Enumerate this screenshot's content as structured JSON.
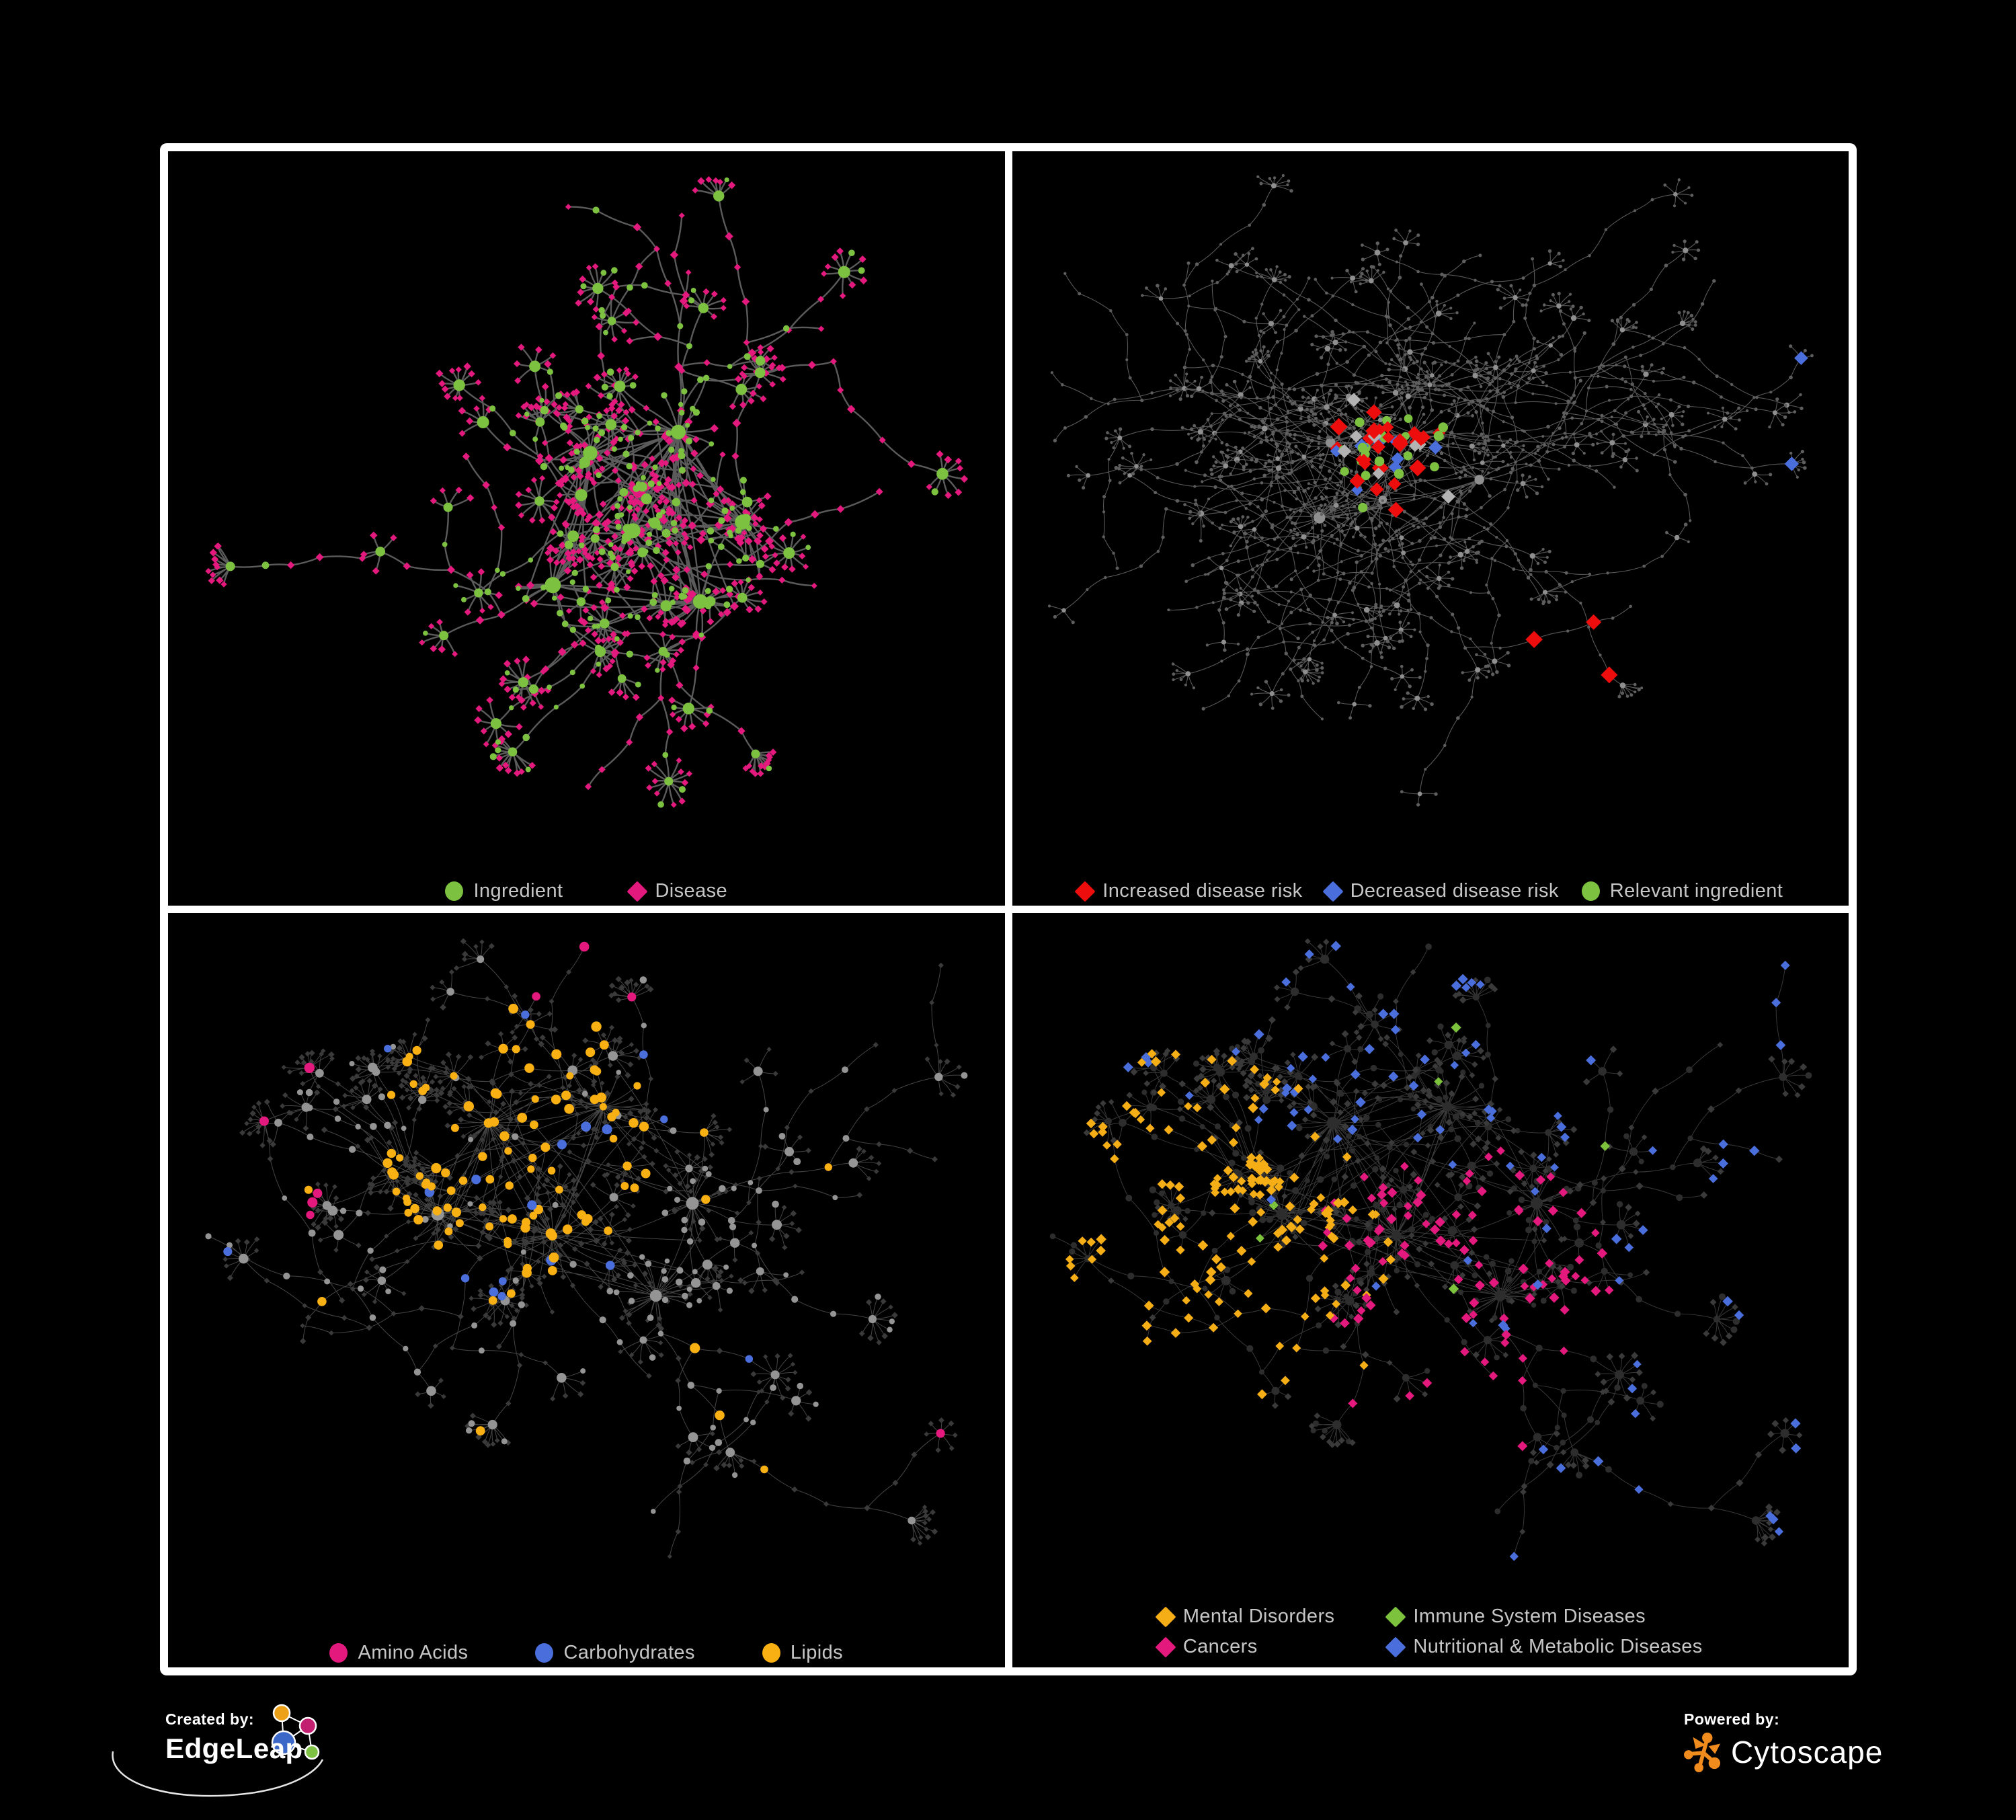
{
  "branding": {
    "created_by": "Created by:",
    "edgeleap": "EdgeLeap",
    "powered_by": "Powered by:",
    "cytoscape": "Cytoscape"
  },
  "colors": {
    "background": "#000000",
    "frame": "#ffffff",
    "panel_bg": "#000000",
    "legend_text": "#c6c6c6",
    "ingredient_green": "#7cc140",
    "disease_pink": "#e3197d",
    "increased_risk_red": "#ee0d0d",
    "decreased_risk_blue": "#4a6fdd",
    "neutral_silver": "#b3b3b3",
    "lipid_amber": "#f9b013",
    "mental_orange": "#f6ae17",
    "immune_green": "#7dc23c",
    "cancer_pink": "#e3197d",
    "nutritional_blue": "#4a6fdd",
    "gray_node": "#949494",
    "dark_node": "#3a3a3a",
    "edgeleap_orange": "#eda118",
    "edgeleap_magenta": "#c21f70",
    "edgeleap_blue": "#3a67c8",
    "edgeleap_green": "#7dc242",
    "cytoscape_orange": "#f08b1d"
  },
  "panels": [
    {
      "id": "ingredient-disease",
      "legend_layout": "row",
      "legend_rows": [
        [
          {
            "shape": "circle",
            "color": "#7cc140",
            "label": "Ingredient"
          },
          {
            "shape": "diamond",
            "color": "#e3197d",
            "label": "Disease"
          }
        ]
      ],
      "style": {
        "edge": "#6f6f6f",
        "edge_w": 2.4,
        "edge_op": 0.82,
        "ing": "#7cc140",
        "dis": "#e3197d"
      }
    },
    {
      "id": "disease-risk",
      "legend_layout": "row",
      "legend_rows": [
        [
          {
            "shape": "diamond",
            "color": "#ee0d0d",
            "label": "Increased disease risk"
          },
          {
            "shape": "diamond",
            "color": "#4a6fdd",
            "label": "Decreased disease risk"
          },
          {
            "shape": "circle",
            "color": "#7cc140",
            "label": "Relevant ingredient"
          }
        ]
      ],
      "style": {
        "edge": "#6e6e6e",
        "edge_w": 1.1,
        "edge_op": 0.8,
        "base": "#5e5e5e",
        "hub": "#8f8f8f",
        "red": "#ee0d0d",
        "blue": "#4a6fdd",
        "silver": "#b3b3b3",
        "green": "#7cc140",
        "counts": {
          "red": 24,
          "blue": 8,
          "silver": 8,
          "green": 20
        }
      }
    },
    {
      "id": "macronutrients",
      "legend_layout": "row",
      "legend_rows": [
        [
          {
            "shape": "circle",
            "color": "#e3197d",
            "label": "Amino Acids"
          },
          {
            "shape": "circle",
            "color": "#4a6fdd",
            "label": "Carbohydrates"
          },
          {
            "shape": "circle",
            "color": "#f9b013",
            "label": "Lipids"
          }
        ]
      ],
      "style": {
        "edge": "#8a8a8a",
        "edge_w": 1.0,
        "edge_op": 0.5,
        "ing": "#949494",
        "dis": "#3a3a3a",
        "amino": "#e3197d",
        "carb": "#4a6fdd",
        "lipid": "#f9b013"
      }
    },
    {
      "id": "disease-categories",
      "legend_layout": "grid",
      "legend_rows": [
        [
          {
            "shape": "diamond",
            "color": "#f6ae17",
            "label": "Mental Disorders"
          },
          {
            "shape": "diamond",
            "color": "#7dc23c",
            "label": "Immune System Diseases"
          }
        ],
        [
          {
            "shape": "diamond",
            "color": "#e3197d",
            "label": "Cancers"
          },
          {
            "shape": "diamond",
            "color": "#4a6fdd",
            "label": "Nutritional & Metabolic Diseases"
          }
        ]
      ],
      "style": {
        "edge": "#8a8a8a",
        "edge_w": 0.95,
        "edge_op": 0.42,
        "ing": "#2d2d2d",
        "dis": "#3a3a3a",
        "mental": "#f6ae17",
        "immune": "#7dc23c",
        "cancer": "#e3197d",
        "nutri": "#4a6fdd"
      }
    }
  ],
  "networks": {
    "A1": {
      "seed": 20,
      "hub_spots": [
        [
          0.33,
          0.36
        ],
        [
          0.47,
          0.33
        ],
        [
          0.41,
          0.5
        ],
        [
          0.56,
          0.45
        ],
        [
          0.29,
          0.55
        ],
        [
          0.52,
          0.62
        ]
      ],
      "branches": 26,
      "core_min": 12,
      "core_max": 28,
      "chain_min": 2,
      "chain_max": 6,
      "step_min": 36,
      "step_max": 84,
      "sub_p": 0.3,
      "fan_p": 0.62,
      "fan_min": 4,
      "fan_max": 14,
      "fan_r_min": 24,
      "fan_r_max": 46,
      "pad": [
        60,
        42,
        150
      ]
    },
    "A2": {
      "seed": 53,
      "hub_spots": [
        [
          0.34,
          0.35
        ],
        [
          0.47,
          0.32
        ],
        [
          0.42,
          0.5
        ],
        [
          0.57,
          0.44
        ],
        [
          0.3,
          0.52
        ]
      ],
      "branches": 40,
      "core_min": 6,
      "core_max": 14,
      "chain_min": 3,
      "chain_max": 8,
      "step_min": 34,
      "step_max": 78,
      "sub_p": 0.34,
      "fan_p": 0.5,
      "fan_min": 3,
      "fan_max": 9,
      "fan_r_min": 20,
      "fan_r_max": 40,
      "pad": [
        55,
        36,
        150
      ]
    },
    "B": {
      "seed": 77,
      "hub_spots": [
        [
          0.3,
          0.38
        ],
        [
          0.44,
          0.33
        ],
        [
          0.4,
          0.52
        ],
        [
          0.55,
          0.47
        ],
        [
          0.25,
          0.52
        ],
        [
          0.5,
          0.63
        ]
      ],
      "branches": 32,
      "core_min": 14,
      "core_max": 34,
      "chain_min": 2,
      "chain_max": 6,
      "step_min": 36,
      "step_max": 80,
      "sub_p": 0.3,
      "fan_p": 0.6,
      "fan_min": 4,
      "fan_max": 13,
      "fan_r_min": 22,
      "fan_r_max": 44,
      "pad": [
        60,
        42,
        165
      ]
    }
  }
}
